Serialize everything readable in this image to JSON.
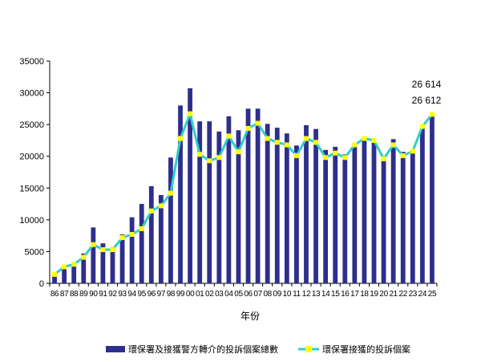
{
  "chart_data": {
    "type": "bar",
    "xlabel": "年份",
    "ylabel": "",
    "ylim": [
      0,
      35000
    ],
    "yticks": [
      "0",
      "5000",
      "10000",
      "15000",
      "20000",
      "25000",
      "30000",
      "35000"
    ],
    "grid": false,
    "legend_position": "bottom",
    "categories": [
      "86",
      "87",
      "88",
      "89",
      "90",
      "91",
      "92",
      "93",
      "94",
      "95",
      "96",
      "97",
      "98",
      "99",
      "00",
      "01",
      "02",
      "03",
      "04",
      "05",
      "06",
      "07",
      "08",
      "09",
      "10",
      "11",
      "12",
      "13",
      "14",
      "15",
      "16",
      "17",
      "18",
      "19",
      "20",
      "21",
      "22",
      "23",
      "24",
      "25"
    ],
    "series": [
      {
        "name": "環保署及接獲警方轉介的投訴個案總數",
        "kind": "bar",
        "color": "#2e2e8c",
        "values": [
          1600,
          2600,
          3000,
          4700,
          8800,
          6300,
          5700,
          7700,
          10400,
          12500,
          15300,
          13900,
          19800,
          28000,
          30700,
          25500,
          25500,
          23900,
          26300,
          24100,
          27500,
          27500,
          25100,
          24500,
          23600,
          21700,
          24900,
          24300,
          21000,
          21500,
          20300,
          22000,
          22900,
          22800,
          19800,
          22700,
          20700,
          20800,
          24700,
          26614
        ]
      },
      {
        "name": "環保署接獲的投訴個案",
        "kind": "line",
        "color": "#33cccc",
        "marker_color": "#ffff00",
        "values": [
          1400,
          2600,
          3000,
          4100,
          6100,
          5300,
          5300,
          7200,
          7700,
          8600,
          11400,
          12200,
          14200,
          22800,
          26700,
          20300,
          19300,
          19800,
          23200,
          20700,
          24400,
          25200,
          22800,
          22200,
          21800,
          20100,
          22800,
          22200,
          19800,
          20500,
          19800,
          21800,
          22800,
          22500,
          19600,
          21800,
          20100,
          20800,
          24700,
          26612
        ]
      }
    ],
    "annotations": [
      "26 614",
      "26 612"
    ]
  }
}
